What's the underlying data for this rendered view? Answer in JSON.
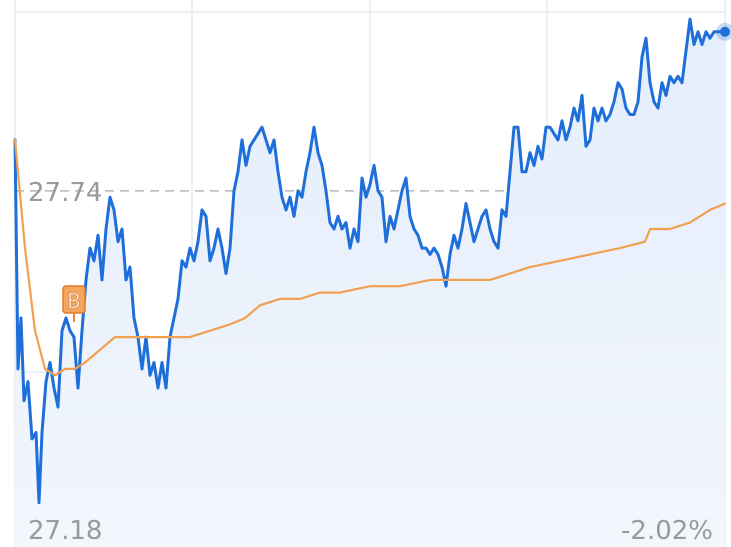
{
  "chart_data": {
    "type": "line",
    "xlim": [
      0,
      710
    ],
    "ylim": [
      27.18,
      28.04
    ],
    "yticks": [
      27.18,
      27.74
    ],
    "reference": 27.74,
    "y2lim": [
      -2.02,
      1.08
    ],
    "y2ticks": [
      {
        "value": -2.02,
        "label": "-2.02%"
      }
    ],
    "annotations": [
      {
        "text": "B"
      }
    ],
    "series": [
      {
        "color": "#1e6fd9",
        "x": [
          0,
          3,
          6,
          9,
          13,
          17,
          21,
          24,
          27,
          31,
          35,
          39,
          43,
          47,
          51,
          55,
          59,
          63,
          67,
          71,
          75,
          79,
          83,
          87,
          91,
          95,
          99,
          103,
          107,
          111,
          115,
          119,
          123,
          127,
          131,
          135,
          139,
          143,
          147,
          151,
          155,
          159,
          163,
          167,
          171,
          175,
          179,
          183,
          187,
          191,
          195,
          199,
          203,
          207,
          211,
          215,
          219,
          223,
          227,
          231,
          235,
          239,
          243,
          247,
          251,
          255,
          259,
          263,
          267,
          271,
          275,
          279,
          283,
          287,
          291,
          295,
          299,
          303,
          307,
          311,
          315,
          319,
          323,
          327,
          331,
          335,
          339,
          343,
          347,
          351,
          355,
          359,
          363,
          367,
          371,
          375,
          379,
          383,
          387,
          391,
          395,
          399,
          403,
          407,
          411,
          415,
          419,
          423,
          427,
          431,
          435,
          439,
          443,
          447,
          451,
          455,
          459,
          463,
          467,
          471,
          475,
          479,
          483,
          487,
          491,
          495,
          499,
          503,
          507,
          511,
          515,
          519,
          523,
          527,
          531,
          535,
          539,
          543,
          547,
          551,
          555,
          559,
          563,
          567,
          571,
          575,
          579,
          583,
          587,
          591,
          595,
          599,
          603,
          607,
          611,
          615,
          619,
          623,
          627,
          631,
          635,
          639,
          643,
          647,
          651,
          655,
          659,
          663,
          667,
          671,
          675,
          679,
          683,
          687,
          691,
          695,
          699,
          703,
          707,
          710
        ],
        "values": [
          27.82,
          27.46,
          27.54,
          27.41,
          27.44,
          27.35,
          27.36,
          27.25,
          27.36,
          27.44,
          27.47,
          27.43,
          27.4,
          27.52,
          27.54,
          27.52,
          27.51,
          27.43,
          27.52,
          27.6,
          27.65,
          27.63,
          27.67,
          27.6,
          27.68,
          27.73,
          27.71,
          27.66,
          27.68,
          27.6,
          27.62,
          27.54,
          27.51,
          27.46,
          27.51,
          27.45,
          27.47,
          27.43,
          27.47,
          27.43,
          27.51,
          27.54,
          27.57,
          27.63,
          27.62,
          27.65,
          27.63,
          27.66,
          27.71,
          27.7,
          27.63,
          27.65,
          27.68,
          27.65,
          27.61,
          27.65,
          27.74,
          27.77,
          27.82,
          27.78,
          27.81,
          27.82,
          27.83,
          27.84,
          27.82,
          27.8,
          27.82,
          27.77,
          27.73,
          27.71,
          27.73,
          27.7,
          27.74,
          27.73,
          27.77,
          27.8,
          27.84,
          27.8,
          27.78,
          27.74,
          27.69,
          27.68,
          27.7,
          27.68,
          27.69,
          27.65,
          27.68,
          27.66,
          27.76,
          27.73,
          27.75,
          27.78,
          27.74,
          27.73,
          27.66,
          27.7,
          27.68,
          27.71,
          27.74,
          27.76,
          27.7,
          27.68,
          27.67,
          27.65,
          27.65,
          27.64,
          27.65,
          27.64,
          27.62,
          27.59,
          27.64,
          27.67,
          27.65,
          27.68,
          27.72,
          27.69,
          27.66,
          27.68,
          27.7,
          27.71,
          27.68,
          27.66,
          27.65,
          27.71,
          27.7,
          27.77,
          27.84,
          27.84,
          27.77,
          27.77,
          27.8,
          27.78,
          27.81,
          27.79,
          27.84,
          27.84,
          27.83,
          27.82,
          27.85,
          27.82,
          27.84,
          27.87,
          27.85,
          27.89,
          27.81,
          27.82,
          27.87,
          27.85,
          27.87,
          27.85,
          27.86,
          27.88,
          27.91,
          27.9,
          27.87,
          27.86,
          27.86,
          27.88,
          27.95,
          27.98,
          27.91,
          27.88,
          27.87,
          27.91,
          27.89,
          27.92,
          27.91,
          27.92,
          27.91,
          27.96,
          28.01,
          27.97,
          27.99,
          27.97,
          27.99,
          27.98,
          27.99,
          27.99,
          27.99,
          27.99
        ]
      },
      {
        "color": "#f0a050",
        "x": [
          0,
          10,
          20,
          30,
          40,
          50,
          60,
          70,
          85,
          100,
          115,
          130,
          145,
          160,
          175,
          195,
          215,
          230,
          245,
          265,
          285,
          305,
          325,
          355,
          385,
          415,
          445,
          475,
          495,
          515,
          545,
          575,
          605,
          630,
          635,
          655,
          675,
          695,
          710
        ],
        "values": [
          27.82,
          27.65,
          27.52,
          27.46,
          27.45,
          27.46,
          27.46,
          27.47,
          27.49,
          27.51,
          27.51,
          27.51,
          27.51,
          27.51,
          27.51,
          27.52,
          27.53,
          27.54,
          27.56,
          27.57,
          27.57,
          27.58,
          27.58,
          27.59,
          27.59,
          27.6,
          27.6,
          27.6,
          27.61,
          27.62,
          27.63,
          27.64,
          27.65,
          27.66,
          27.68,
          27.68,
          27.69,
          27.71,
          27.72
        ]
      }
    ]
  }
}
